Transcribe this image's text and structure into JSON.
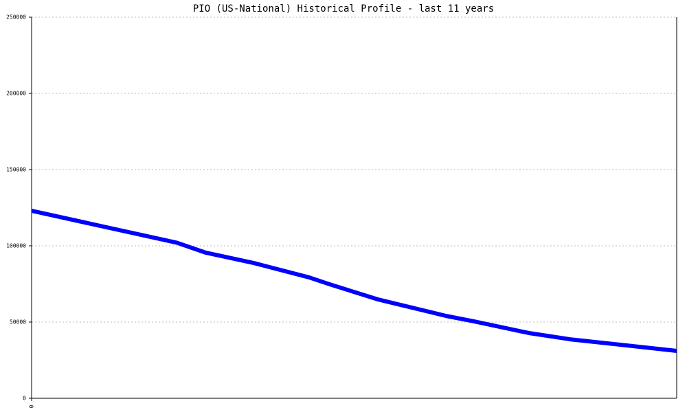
{
  "chart_data": {
    "type": "line",
    "title": "PIO (US-National) Historical Profile - last 11 years",
    "x": [
      0,
      2.48,
      2.97,
      3.79,
      4.73,
      5.08,
      5.9,
      7.07,
      7.54,
      8.48,
      9.18,
      11
    ],
    "series": [
      {
        "color": "#0000ff",
        "values": [
          123000,
          102000,
          95500,
          88700,
          79300,
          74800,
          64900,
          54000,
          50500,
          42800,
          38700,
          31100
        ]
      }
    ],
    "xlim": [
      0,
      11
    ],
    "xticks": [
      0
    ],
    "ylim": [
      0,
      250000
    ],
    "yticks": [
      0,
      50000,
      100000,
      150000,
      200000,
      250000
    ],
    "grid": true
  }
}
